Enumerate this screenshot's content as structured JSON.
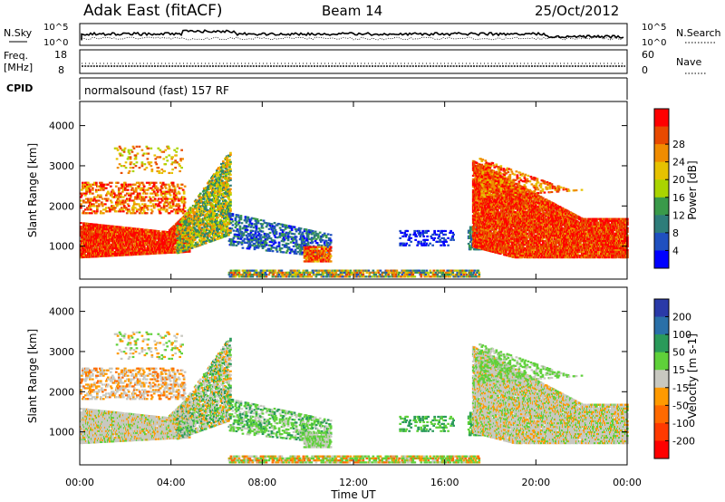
{
  "header": {
    "station": "Adak East (fitACF)",
    "beam": "Beam 14",
    "date": "25/Oct/2012"
  },
  "nsky_panel": {
    "left_label": "N.Sky",
    "right_label": "N.Search",
    "left_ticks": [
      "10^5",
      "10^0"
    ],
    "right_ticks": [
      "10^5",
      "10^0"
    ]
  },
  "freq_panel": {
    "left_label_1": "Freq.",
    "left_label_2": "[MHz]",
    "right_label": "Nave",
    "left_ticks": [
      "18",
      "8"
    ],
    "right_ticks": [
      "60",
      "0"
    ]
  },
  "cpid_panel": {
    "label": "CPID",
    "text": "normalsound (fast) 157 RF"
  },
  "chart_data": [
    {
      "type": "heatmap",
      "name": "Power",
      "ylabel": "Slant Range [km]",
      "xlabel": "Time UT",
      "xlim": [
        0,
        24
      ],
      "ylim": [
        180,
        4600
      ],
      "yticks": [
        1000,
        2000,
        3000,
        4000
      ],
      "colorbar": {
        "label": "Power [dB]",
        "ticks": [
          "4",
          "8",
          "12",
          "16",
          "20",
          "24",
          "28"
        ],
        "range": [
          0,
          30
        ],
        "colors": [
          "#0000ff",
          "#1f50c0",
          "#2e7d7a",
          "#3a9a4a",
          "#aad400",
          "#e6c200",
          "#f08c00",
          "#e84a00",
          "#ff0000"
        ]
      }
    },
    {
      "type": "heatmap",
      "name": "Velocity",
      "ylabel": "Slant Range [km]",
      "xlabel": "Time UT",
      "xlim": [
        0,
        24
      ],
      "ylim": [
        180,
        4600
      ],
      "yticks": [
        1000,
        2000,
        3000,
        4000
      ],
      "xticks": [
        "00:00",
        "04:00",
        "08:00",
        "12:00",
        "16:00",
        "20:00",
        "00:00"
      ],
      "colorbar": {
        "label": "Velocity [m s-1]",
        "ticks": [
          "200",
          "100",
          "50",
          "15",
          "-15",
          "-50",
          "-100",
          "-200"
        ],
        "colors": [
          "#2a3aa8",
          "#2a70a8",
          "#2a9a5a",
          "#5fd13a",
          "#c8c8c0",
          "#ff9a00",
          "#ff6a00",
          "#ff3a00",
          "#ff0000"
        ]
      }
    }
  ]
}
